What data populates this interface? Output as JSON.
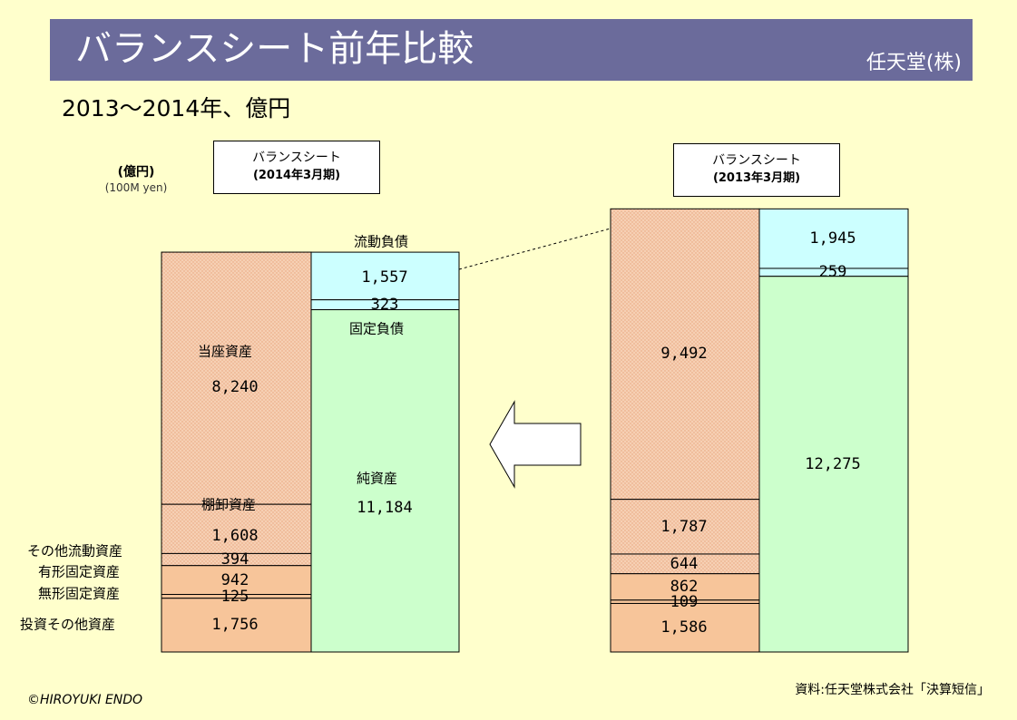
{
  "title": "バランスシート前年比較",
  "company": "任天堂(株)",
  "subtitle": "2013～2014年、億円",
  "unit_ja": "(億円)",
  "unit_en": "(100M yen)",
  "copyright": "©HIROYUKI ENDO",
  "source": "資料:任天堂株式会社「決算短信」",
  "colors": {
    "banner": "#6b6b9b",
    "background": "#ffffcc",
    "current_assets": "#f6d0b4",
    "fixed_assets": "#f7c59a",
    "current_liabilities": "#ccffff",
    "net_assets": "#ccffcc"
  },
  "icons": {
    "arrow": "left-arrow-icon"
  },
  "chart_data": {
    "type": "stacked-bar",
    "left": {
      "header_line1": "バランスシート",
      "header_line2": "(2014年3月期)",
      "assets": [
        {
          "name": "当座資産",
          "value": 8240,
          "label": "8,240"
        },
        {
          "name": "棚卸資産",
          "value": 1608,
          "label": "1,608"
        },
        {
          "name": "その他流動資産",
          "value": 394,
          "label": "394"
        },
        {
          "name": "有形固定資産",
          "value": 942,
          "label": "942"
        },
        {
          "name": "無形固定資産",
          "value": 125,
          "label": "125"
        },
        {
          "name": "投資その他資産",
          "value": 1756,
          "label": "1,756"
        }
      ],
      "liabilities": [
        {
          "name": "流動負債",
          "value": 1557,
          "label": "1,557"
        },
        {
          "name": "固定負債",
          "value": 323,
          "label": "323"
        },
        {
          "name": "純資産",
          "value": 11184,
          "label": "11,184"
        }
      ]
    },
    "right": {
      "header_line1": "バランスシート",
      "header_line2": "(2013年3月期)",
      "assets": [
        {
          "value": 9492,
          "label": "9,492"
        },
        {
          "value": 1787,
          "label": "1,787"
        },
        {
          "value": 644,
          "label": "644"
        },
        {
          "value": 862,
          "label": "862"
        },
        {
          "value": 109,
          "label": "109"
        },
        {
          "value": 1586,
          "label": "1,586"
        }
      ],
      "liabilities": [
        {
          "value": 1945,
          "label": "1,945"
        },
        {
          "value": 259,
          "label": "259"
        },
        {
          "value": 12275,
          "label": "12,275"
        }
      ]
    }
  }
}
